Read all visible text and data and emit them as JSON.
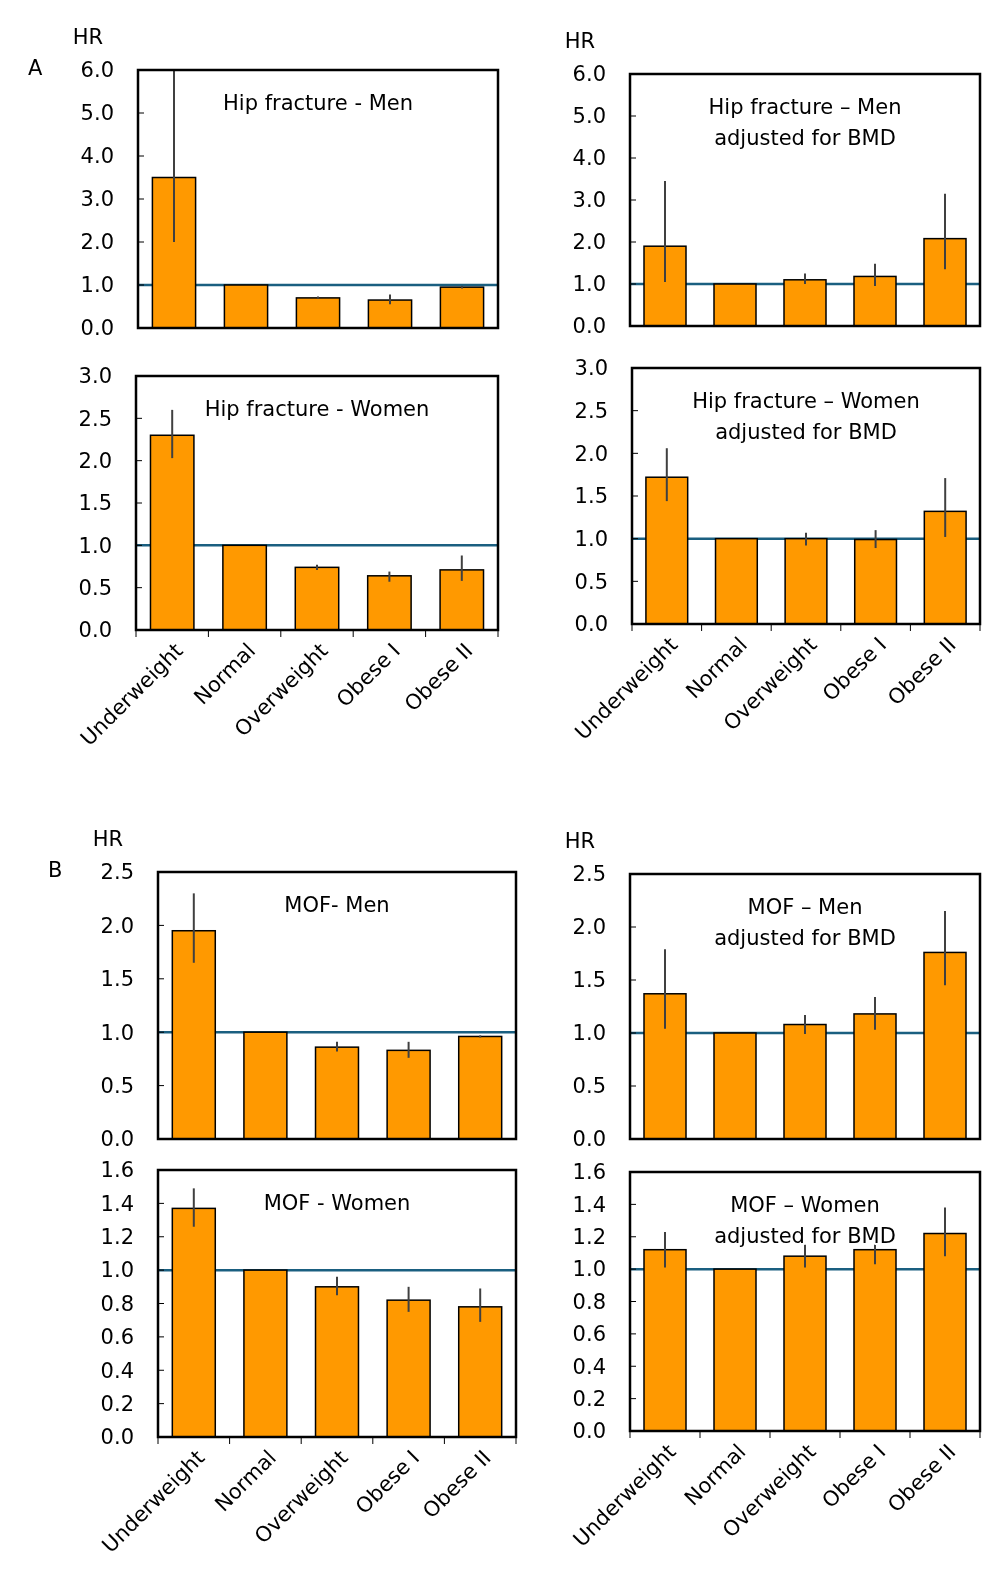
{
  "chart_data": [
    {
      "type": "bar",
      "title": "Hip fracture - Men",
      "ylabel": "HR",
      "annotations": [
        "A"
      ],
      "categories": [
        null,
        null,
        null,
        null,
        null
      ],
      "values": [
        3.5,
        1.0,
        0.7,
        0.65,
        0.95
      ],
      "errors": [
        [
          2.0,
          6.0
        ],
        null,
        [
          0.68,
          0.73
        ],
        [
          0.55,
          0.78
        ],
        [
          0.92,
          0.98
        ]
      ],
      "color": "#ff9900",
      "ylim": [
        0,
        6
      ],
      "yticks": [
        {
          "value": 0,
          "label": "0.0"
        },
        {
          "value": 1,
          "label": "1.0"
        },
        {
          "value": 2,
          "label": "2.0"
        },
        {
          "value": 3,
          "label": "3.0"
        },
        {
          "value": 4,
          "label": "4.0"
        },
        {
          "value": 5,
          "label": "5.0"
        },
        {
          "value": 6,
          "label": "6.0"
        }
      ],
      "ref_lines": [
        {
          "axis": "y",
          "value": 1,
          "color": "#1a5f80"
        }
      ],
      "tick_labels": "y",
      "grid": false
    },
    {
      "type": "bar",
      "title": "Hip fracture – Men",
      "subtitle": "adjusted for BMD",
      "ylabel": "HR",
      "categories": [
        null,
        null,
        null,
        null,
        null
      ],
      "values": [
        1.9,
        1.0,
        1.1,
        1.18,
        2.08
      ],
      "errors": [
        [
          1.05,
          3.45
        ],
        null,
        [
          1.0,
          1.25
        ],
        [
          0.95,
          1.48
        ],
        [
          1.35,
          3.15
        ]
      ],
      "color": "#ff9900",
      "ylim": [
        0,
        6
      ],
      "yticks": [
        {
          "value": 0,
          "label": "0.0"
        },
        {
          "value": 1,
          "label": "1.0"
        },
        {
          "value": 2,
          "label": "2.0"
        },
        {
          "value": 3,
          "label": "3.0"
        },
        {
          "value": 4,
          "label": "4.0"
        },
        {
          "value": 5,
          "label": "5.0"
        },
        {
          "value": 6,
          "label": "6.0"
        }
      ],
      "ref_lines": [
        {
          "axis": "y",
          "value": 1,
          "color": "#1a5f80"
        }
      ],
      "tick_labels": "y",
      "grid": false
    },
    {
      "type": "bar",
      "title": "Hip fracture - Women",
      "categories": [
        "Underweight",
        "Normal",
        "Overweight",
        "Obese I",
        "Obese II"
      ],
      "values": [
        2.3,
        1.0,
        0.74,
        0.64,
        0.71
      ],
      "errors": [
        [
          2.03,
          2.6
        ],
        null,
        [
          0.71,
          0.77
        ],
        [
          0.57,
          0.69
        ],
        [
          0.58,
          0.88
        ]
      ],
      "color": "#ff9900",
      "ylim": [
        0,
        3
      ],
      "yticks": [
        {
          "value": 0,
          "label": "0.0"
        },
        {
          "value": 0.5,
          "label": "0.5"
        },
        {
          "value": 1,
          "label": "1.0"
        },
        {
          "value": 1.5,
          "label": "1.5"
        },
        {
          "value": 2,
          "label": "2.0"
        },
        {
          "value": 2.5,
          "label": "2.5"
        },
        {
          "value": 3,
          "label": "3.0"
        }
      ],
      "ref_lines": [
        {
          "axis": "y",
          "value": 1,
          "color": "#1a5f80"
        }
      ],
      "grid": false
    },
    {
      "type": "bar",
      "title": "Hip fracture – Women",
      "subtitle": "adjusted for BMD",
      "categories": [
        "Underweight",
        "Normal",
        "Overweight",
        "Obese I",
        "Obese II"
      ],
      "values": [
        1.72,
        1.0,
        1.0,
        0.99,
        1.32
      ],
      "errors": [
        [
          1.44,
          2.06
        ],
        null,
        [
          0.92,
          1.07
        ],
        [
          0.89,
          1.1
        ],
        [
          1.02,
          1.71
        ]
      ],
      "color": "#ff9900",
      "ylim": [
        0,
        3
      ],
      "yticks": [
        {
          "value": 0,
          "label": "0.0"
        },
        {
          "value": 0.5,
          "label": "0.5"
        },
        {
          "value": 1,
          "label": "1.0"
        },
        {
          "value": 1.5,
          "label": "1.5"
        },
        {
          "value": 2,
          "label": "2.0"
        },
        {
          "value": 2.5,
          "label": "2.5"
        },
        {
          "value": 3,
          "label": "3.0"
        }
      ],
      "ref_lines": [
        {
          "axis": "y",
          "value": 1,
          "color": "#1a5f80"
        }
      ],
      "grid": false
    },
    {
      "type": "bar",
      "title": "MOF- Men",
      "ylabel": "HR",
      "annotations": [
        "B"
      ],
      "categories": [
        null,
        null,
        null,
        null,
        null
      ],
      "values": [
        1.95,
        1.0,
        0.86,
        0.83,
        0.96
      ],
      "errors": [
        [
          1.65,
          2.3
        ],
        null,
        [
          0.82,
          0.91
        ],
        [
          0.76,
          0.91
        ],
        [
          0.95,
          0.97
        ]
      ],
      "color": "#ff9900",
      "ylim": [
        0,
        2.5
      ],
      "yticks": [
        {
          "value": 0,
          "label": "0.0"
        },
        {
          "value": 0.5,
          "label": "0.5"
        },
        {
          "value": 1,
          "label": "1.0"
        },
        {
          "value": 1.5,
          "label": "1.5"
        },
        {
          "value": 2,
          "label": "2.0"
        },
        {
          "value": 2.5,
          "label": "2.5"
        }
      ],
      "ref_lines": [
        {
          "axis": "y",
          "value": 1,
          "color": "#1a5f80"
        }
      ],
      "tick_labels": "y",
      "grid": false
    },
    {
      "type": "bar",
      "title": "MOF – Men",
      "subtitle": "adjusted for BMD",
      "ylabel": "HR",
      "categories": [
        null,
        null,
        null,
        null,
        null
      ],
      "values": [
        1.37,
        1.0,
        1.08,
        1.18,
        1.76
      ],
      "errors": [
        [
          1.04,
          1.79
        ],
        null,
        [
          0.99,
          1.17
        ],
        [
          1.03,
          1.34
        ],
        [
          1.45,
          2.15
        ]
      ],
      "color": "#ff9900",
      "ylim": [
        0,
        2.5
      ],
      "yticks": [
        {
          "value": 0,
          "label": "0.0"
        },
        {
          "value": 0.5,
          "label": "0.5"
        },
        {
          "value": 1,
          "label": "1.0"
        },
        {
          "value": 1.5,
          "label": "1.5"
        },
        {
          "value": 2,
          "label": "2.0"
        },
        {
          "value": 2.5,
          "label": "2.5"
        }
      ],
      "ref_lines": [
        {
          "axis": "y",
          "value": 1,
          "color": "#1a5f80"
        }
      ],
      "tick_labels": "y",
      "grid": false
    },
    {
      "type": "bar",
      "title": "MOF - Women",
      "categories": [
        "Underweight",
        "Normal",
        "Overweight",
        "Obese I",
        "Obese II"
      ],
      "values": [
        1.37,
        1.0,
        0.9,
        0.82,
        0.78
      ],
      "errors": [
        [
          1.26,
          1.49
        ],
        null,
        [
          0.85,
          0.96
        ],
        [
          0.75,
          0.9
        ],
        [
          0.69,
          0.89
        ]
      ],
      "color": "#ff9900",
      "ylim": [
        0,
        1.6
      ],
      "yticks": [
        {
          "value": 0,
          "label": "0.0"
        },
        {
          "value": 0.2,
          "label": "0.2"
        },
        {
          "value": 0.4,
          "label": "0.4"
        },
        {
          "value": 0.6,
          "label": "0.6"
        },
        {
          "value": 0.8,
          "label": "0.8"
        },
        {
          "value": 1,
          "label": "1.0"
        },
        {
          "value": 1.2,
          "label": "1.2"
        },
        {
          "value": 1.4,
          "label": "1.4"
        },
        {
          "value": 1.6,
          "label": "1.6"
        }
      ],
      "ref_lines": [
        {
          "axis": "y",
          "value": 1,
          "color": "#1a5f80"
        }
      ],
      "grid": false
    },
    {
      "type": "bar",
      "title": "MOF – Women",
      "subtitle": "adjusted for BMD",
      "categories": [
        "Underweight",
        "Normal",
        "Overweight",
        "Obese I",
        "Obese II"
      ],
      "values": [
        1.12,
        1.0,
        1.08,
        1.12,
        1.22
      ],
      "errors": [
        [
          1.01,
          1.23
        ],
        null,
        [
          1.01,
          1.15
        ],
        [
          1.03,
          1.24
        ],
        [
          1.08,
          1.38
        ]
      ],
      "color": "#ff9900",
      "ylim": [
        0,
        1.6
      ],
      "yticks": [
        {
          "value": 0,
          "label": "0.0"
        },
        {
          "value": 0.2,
          "label": "0.2"
        },
        {
          "value": 0.4,
          "label": "0.4"
        },
        {
          "value": 0.6,
          "label": "0.6"
        },
        {
          "value": 0.8,
          "label": "0.8"
        },
        {
          "value": 1,
          "label": "1.0"
        },
        {
          "value": 1.2,
          "label": "1.2"
        },
        {
          "value": 1.4,
          "label": "1.4"
        },
        {
          "value": 1.6,
          "label": "1.6"
        }
      ],
      "ref_lines": [
        {
          "axis": "y",
          "value": 1,
          "color": "#1a5f80"
        }
      ],
      "grid": false
    }
  ]
}
